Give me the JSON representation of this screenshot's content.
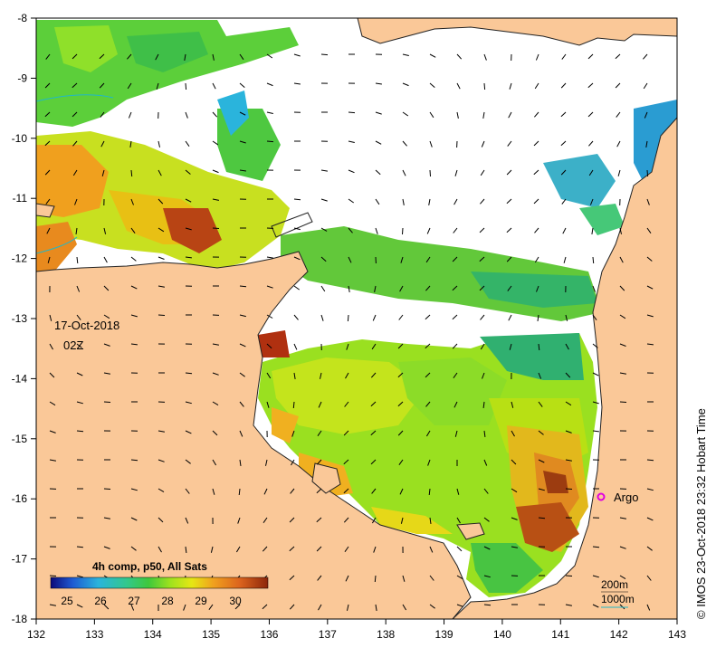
{
  "map": {
    "date_label": "17-Oct-2018",
    "time_label": "02Z",
    "colorbar_title": "4h comp, p50, All Sats",
    "colorbar_ticks": [
      "25",
      "26",
      "27",
      "28",
      "29",
      "30"
    ],
    "marker_label": "Argo",
    "marker_color": "#e000e0",
    "contour_legend": [
      "200m",
      "1000m"
    ],
    "credit": "© IMOS 23-Oct-2018 23:32 Hobart Time",
    "x_ticks": [
      "132",
      "133",
      "134",
      "135",
      "136",
      "137",
      "138",
      "139",
      "140",
      "141",
      "142",
      "143"
    ],
    "y_ticks": [
      "-8",
      "-9",
      "-10",
      "-11",
      "-12",
      "-13",
      "-14",
      "-15",
      "-16",
      "-17",
      "-18"
    ],
    "colors": {
      "land": "#fac898",
      "sea_no_data": "#ffffff",
      "colormap": [
        "#0a0a7a",
        "#1e5ad2",
        "#2ab4dc",
        "#32c88c",
        "#3ec83c",
        "#9ee21e",
        "#e6e614",
        "#f0a01e",
        "#dc641e",
        "#a0320a",
        "#6e1e0a"
      ]
    }
  }
}
